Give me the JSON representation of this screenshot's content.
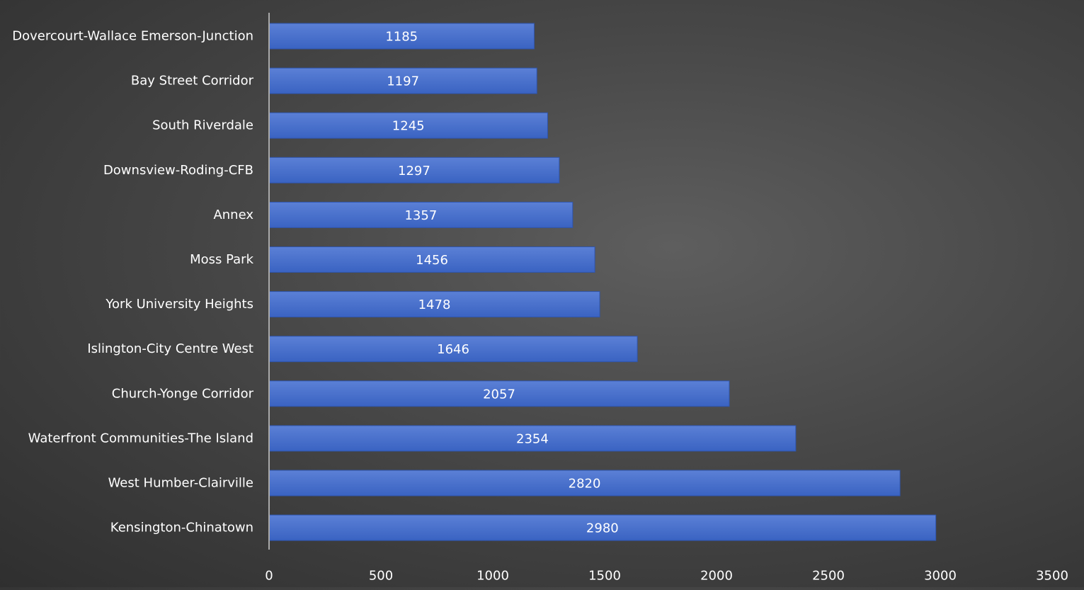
{
  "chart_data": {
    "type": "bar",
    "orientation": "horizontal",
    "categories": [
      "Dovercourt-Wallace Emerson-Junction",
      "Bay Street Corridor",
      "South Riverdale",
      "Downsview-Roding-CFB",
      "Annex",
      "Moss Park",
      "York University Heights",
      "Islington-City Centre West",
      "Church-Yonge Corridor",
      "Waterfront Communities-The Island",
      "West Humber-Clairville",
      "Kensington-Chinatown"
    ],
    "values": [
      1185,
      1197,
      1245,
      1297,
      1357,
      1456,
      1478,
      1646,
      2057,
      2354,
      2820,
      2980
    ],
    "data_labels": [
      "1185",
      "1197",
      "1245",
      "1297",
      "1357",
      "1456",
      "1478",
      "1646",
      "2057",
      "2354",
      "2820",
      "2980"
    ],
    "xlim": [
      0,
      3500
    ],
    "x_ticks": [
      0,
      500,
      1000,
      1500,
      2000,
      2500,
      3000,
      3500
    ],
    "x_tick_labels": [
      "0",
      "500",
      "1000",
      "1500",
      "2000",
      "2500",
      "3000",
      "3500"
    ],
    "title": "",
    "xlabel": "",
    "ylabel": "",
    "grid": false,
    "legend": "none",
    "colors": {
      "bar_fill_top": "#5b80d6",
      "bar_fill_bottom": "#3a63c2",
      "bar_edge": "#2f55ad",
      "axis_line": "#a9a9a9",
      "text": "#ffffff",
      "background_center": "#5e5e5e",
      "background_edge": "#2f2f2f"
    }
  }
}
